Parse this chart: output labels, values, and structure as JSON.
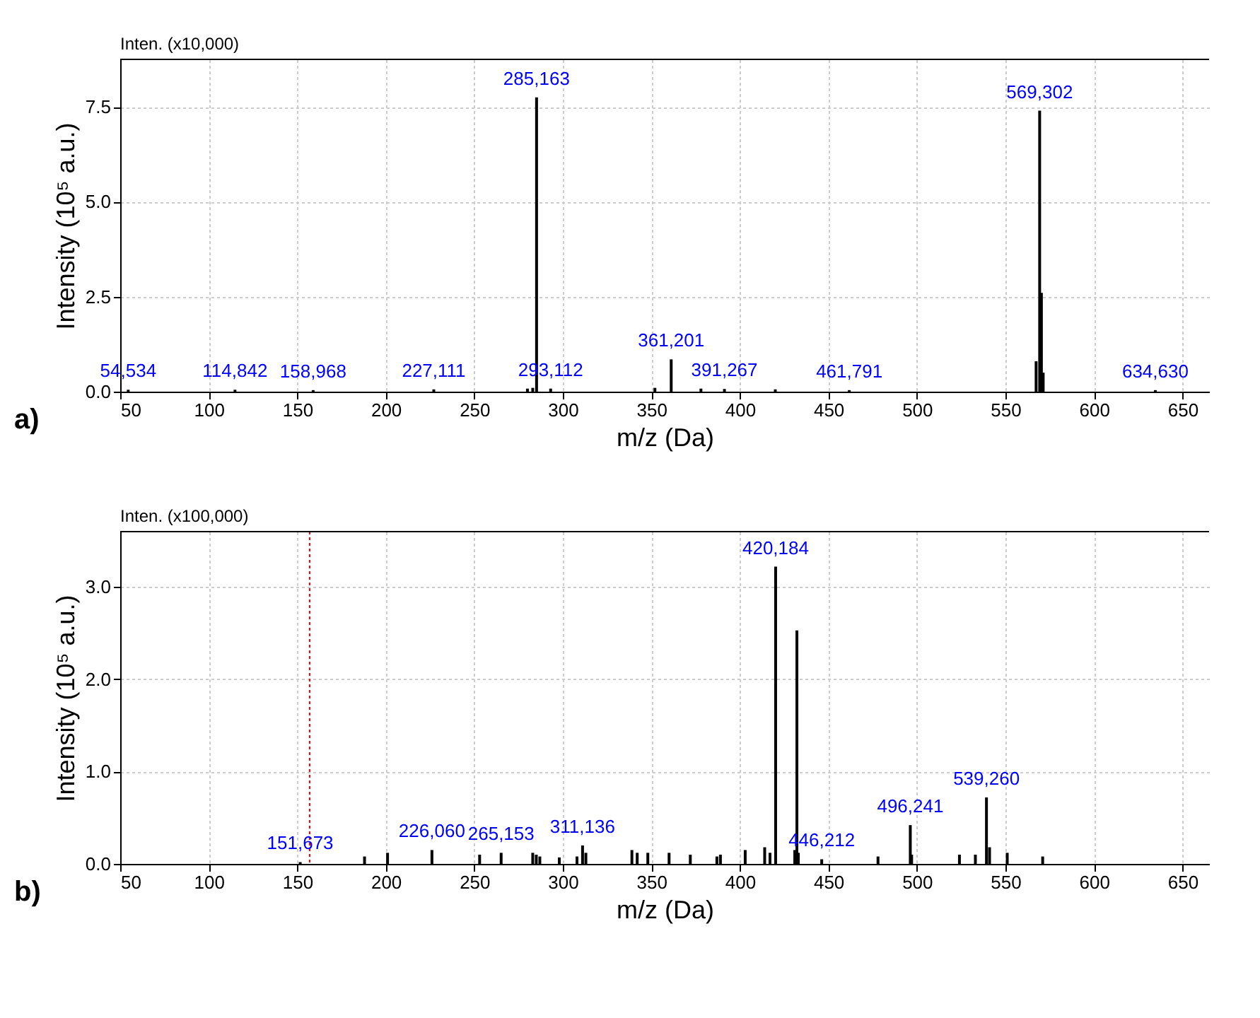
{
  "chart_data": [
    {
      "type": "bar",
      "xlabel": "m/z (Da)",
      "ylabel": "Intensity (10⁵ a.u.)",
      "annotations": [
        "Inten. (x10,000)",
        "a)",
        {
          "text": "54,534",
          "x": 54.534,
          "y": 0.05
        },
        {
          "text": "114,842",
          "x": 114.842,
          "y": 0.05
        },
        {
          "text": "158,968",
          "x": 158.968,
          "y": 0.04
        },
        {
          "text": "227,111",
          "x": 227.111,
          "y": 0.06
        },
        {
          "text": "285,163",
          "x": 285.163,
          "y": 7.75
        },
        {
          "text": "293,112",
          "x": 293.112,
          "y": 0.08
        },
        {
          "text": "361,201",
          "x": 361.201,
          "y": 0.85
        },
        {
          "text": "391,267",
          "x": 391.267,
          "y": 0.07
        },
        {
          "text": "461,791",
          "x": 461.791,
          "y": 0.04
        },
        {
          "text": "569,302",
          "x": 569.302,
          "y": 7.4
        },
        {
          "text": "634,630",
          "x": 634.63,
          "y": 0.04
        }
      ],
      "x": [
        54.534,
        114.842,
        158.968,
        227.111,
        280,
        283,
        285.163,
        293.112,
        352,
        361.201,
        378,
        391.267,
        420,
        461.791,
        567.3,
        569.302,
        570.3,
        571.3,
        634.63
      ],
      "series": [
        {
          "color": "#000000",
          "values": [
            0.05,
            0.05,
            0.04,
            0.06,
            0.08,
            0.1,
            7.75,
            0.08,
            0.1,
            0.85,
            0.08,
            0.07,
            0.06,
            0.04,
            0.8,
            7.4,
            2.6,
            0.5,
            0.04
          ]
        }
      ],
      "xlim": [
        50,
        665
      ],
      "xticks": [
        50,
        100,
        150,
        200,
        250,
        300,
        350,
        400,
        450,
        500,
        550,
        600,
        650
      ],
      "ylim": [
        0,
        8.75
      ],
      "yticks": [
        {
          "value": 0,
          "label": "0.0"
        },
        {
          "value": 2.5,
          "label": "2.5"
        },
        {
          "value": 5,
          "label": "5.0"
        },
        {
          "value": 7.5,
          "label": "7.5"
        }
      ],
      "grid": true
    },
    {
      "type": "bar",
      "xlabel": "m/z (Da)",
      "ylabel": "Intensity (10⁵ a.u.)",
      "annotations": [
        "Inten. (x100,000)",
        "b)",
        {
          "text": "151,673",
          "x": 151.673,
          "y": 0.02
        },
        {
          "text": "226,060",
          "x": 226.06,
          "y": 0.15
        },
        {
          "text": "265,153",
          "x": 265.153,
          "y": 0.12
        },
        {
          "text": "311,136",
          "x": 311.136,
          "y": 0.2
        },
        {
          "text": "420,184",
          "x": 420.184,
          "y": 3.22
        },
        {
          "text": "446,212",
          "x": 446.212,
          "y": 0.05
        },
        {
          "text": "496,241",
          "x": 496.241,
          "y": 0.42
        },
        {
          "text": "539,260",
          "x": 539.26,
          "y": 0.72
        }
      ],
      "x": [
        151.673,
        188,
        201,
        226.06,
        253,
        265.153,
        283,
        285,
        287,
        298,
        308,
        311.136,
        313,
        339,
        342,
        348,
        360,
        372,
        387,
        389,
        403,
        414,
        417,
        420.184,
        431,
        432.2,
        433,
        446.212,
        478,
        496.241,
        497,
        524,
        533,
        539.26,
        541,
        551,
        571
      ],
      "series": [
        {
          "color": "#000000",
          "values": [
            0.02,
            0.08,
            0.12,
            0.15,
            0.1,
            0.12,
            0.12,
            0.1,
            0.08,
            0.07,
            0.08,
            0.2,
            0.12,
            0.15,
            0.12,
            0.12,
            0.12,
            0.1,
            0.08,
            0.1,
            0.15,
            0.18,
            0.12,
            3.22,
            0.15,
            2.53,
            0.12,
            0.05,
            0.08,
            0.42,
            0.1,
            0.1,
            0.1,
            0.72,
            0.18,
            0.12,
            0.08
          ]
        }
      ],
      "xlim": [
        50,
        665
      ],
      "xticks": [
        50,
        100,
        150,
        200,
        250,
        300,
        350,
        400,
        450,
        500,
        550,
        600,
        650
      ],
      "ylim": [
        0,
        3.6
      ],
      "yticks": [
        {
          "value": 0,
          "label": "0.0"
        },
        {
          "value": 1,
          "label": "1.0"
        },
        {
          "value": 2,
          "label": "2.0"
        },
        {
          "value": 3,
          "label": "3.0"
        }
      ],
      "ref_lines": [
        {
          "axis": "x",
          "value": 157,
          "color": "#ff0000",
          "line_style": "dotted"
        }
      ],
      "grid": true
    }
  ]
}
